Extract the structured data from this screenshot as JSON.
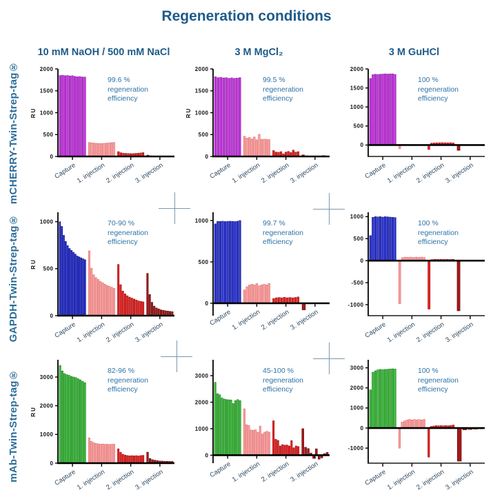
{
  "title": "Regeneration conditions",
  "columns": [
    "10 mM NaOH / 500 mM NaCl",
    "3 M MgCl₂",
    "3 M GuHCl"
  ],
  "rows": [
    "mCHERRY-Twin-Strep-tag®",
    "GAPDH-Twin-Strep-tag®",
    "mAb-Twin-Strep-tag®"
  ],
  "colors": {
    "title": "#1E5B88",
    "row_label": "#2C6D99",
    "annotation": "#2D73A6",
    "axis": "#000000",
    "cross": "#7E97AB",
    "capture_mcherry": "#C334DA",
    "capture_gapdh": "#2B35DC",
    "capture_mab": "#3DBE3D",
    "injection1": "#F7A2A2",
    "injection2": "#E52222",
    "injection3": "#A51818"
  },
  "chart_data": [
    {
      "name": "mCHERRY + 10 mM NaOH / 500 mM NaCl",
      "type": "bar",
      "ylabel": "RU",
      "ylim": [
        0,
        2000
      ],
      "yticks": [
        0,
        500,
        1000,
        1500,
        2000
      ],
      "bottom_axis": false,
      "annotation": "99.6 %\nregeneration\nefficiency",
      "groups": [
        {
          "label": "Capture",
          "fill": "#C334DA",
          "edge": "#8A1BA8",
          "values": [
            1850,
            1855,
            1845,
            1850,
            1840,
            1845,
            1830,
            1820,
            1825,
            1815,
            1815
          ]
        },
        {
          "label": "1. injection",
          "fill": "#F7A2A2",
          "edge": "#E06A6A",
          "values": [
            320,
            310,
            305,
            300,
            298,
            295,
            300,
            305,
            310,
            315,
            320
          ]
        },
        {
          "label": "2. injection",
          "fill": "#E52222",
          "edge": "#9E1212",
          "values": [
            110,
            85,
            75,
            70,
            68,
            65,
            65,
            70,
            75,
            80,
            88
          ]
        },
        {
          "label": "3. injection",
          "fill": "#A51818",
          "edge": "#5E0C0C",
          "values": [
            30,
            15,
            10,
            8,
            6,
            5,
            5,
            4,
            4,
            4
          ]
        }
      ]
    },
    {
      "name": "mCHERRY + 3 M MgCl₂",
      "type": "bar",
      "ylabel": "RU",
      "ylim": [
        0,
        2000
      ],
      "yticks": [
        0,
        500,
        1000,
        1500,
        2000
      ],
      "bottom_axis": false,
      "annotation": "99.5 %\nregeneration\nefficiency",
      "groups": [
        {
          "label": "Capture",
          "fill": "#C334DA",
          "edge": "#8A1BA8",
          "values": [
            1820,
            1800,
            1805,
            1795,
            1800,
            1785,
            1795,
            1785,
            1790,
            1800
          ]
        },
        {
          "label": "1. injection",
          "fill": "#F7A2A2",
          "edge": "#E06A6A",
          "values": [
            460,
            420,
            435,
            400,
            445,
            380,
            505,
            390,
            395,
            390,
            385
          ]
        },
        {
          "label": "2. injection",
          "fill": "#E52222",
          "edge": "#9E1212",
          "values": [
            135,
            100,
            95,
            110,
            60,
            100,
            115,
            90,
            145,
            100,
            110
          ]
        },
        {
          "label": "3. injection",
          "fill": "#A51818",
          "edge": "#5E0C0C",
          "values": [
            35,
            15,
            10,
            8,
            6,
            5,
            20,
            6
          ]
        }
      ]
    },
    {
      "name": "mCHERRY + 3 M GuHCl",
      "type": "bar",
      "ylabel": "",
      "ylim": [
        -300,
        2000
      ],
      "yticks": [
        0,
        500,
        1000,
        1500,
        2000
      ],
      "bottom_axis": true,
      "annotation": "100 %\nregeneration\nefficiency",
      "groups": [
        {
          "label": "Capture",
          "fill": "#C334DA",
          "edge": "#8A1BA8",
          "values": [
            1750,
            1850,
            1860,
            1855,
            1860,
            1865,
            1870,
            1865,
            1870,
            1870,
            1855
          ]
        },
        {
          "label": "1. injection",
          "fill": "#F7A2A2",
          "edge": "#E06A6A",
          "values": [
            -95,
            18,
            15,
            14,
            12,
            12,
            10,
            10,
            10,
            10
          ]
        },
        {
          "label": "2. injection",
          "fill": "#E52222",
          "edge": "#9E1212",
          "values": [
            -115,
            50,
            55,
            58,
            60,
            62,
            60,
            58,
            60,
            55
          ]
        },
        {
          "label": "3. injection",
          "fill": "#A51818",
          "edge": "#5E0C0C",
          "values": [
            -140,
            8,
            5,
            4,
            3,
            3,
            3
          ]
        }
      ]
    },
    {
      "name": "GAPDH + 10 mM NaOH / 500 mM NaCl",
      "type": "bar",
      "ylabel": "RU",
      "ylim": [
        0,
        1100
      ],
      "yticks": [
        0,
        500,
        1000
      ],
      "bottom_axis": false,
      "annotation": "70-90 %\nregeneration\nefficiency",
      "groups": [
        {
          "label": "Capture",
          "fill": "#2B35DC",
          "edge": "#10147F",
          "values": [
            1000,
            950,
            855,
            790,
            745,
            715,
            695,
            675,
            655,
            635,
            625,
            615,
            605,
            595
          ]
        },
        {
          "label": "1. injection",
          "fill": "#F7A2A2",
          "edge": "#E06A6A",
          "values": [
            690,
            505,
            435,
            405,
            385,
            365,
            350,
            335,
            322,
            312,
            302,
            292
          ]
        },
        {
          "label": "2. injection",
          "fill": "#E52222",
          "edge": "#9E1212",
          "values": [
            545,
            330,
            262,
            232,
            212,
            197,
            187,
            177,
            167,
            157,
            152,
            147
          ]
        },
        {
          "label": "3. injection",
          "fill": "#A51818",
          "edge": "#5E0C0C",
          "values": [
            450,
            225,
            142,
            102,
            82,
            72,
            62,
            57,
            52,
            49,
            46,
            43
          ]
        }
      ]
    },
    {
      "name": "GAPDH + 3 M MgCl₂",
      "type": "bar",
      "ylabel": "",
      "ylim": [
        -150,
        1100
      ],
      "yticks": [
        0,
        500,
        1000
      ],
      "bottom_axis": false,
      "annotation": "99.7 %\nregeneration\nefficiency",
      "groups": [
        {
          "label": "Capture",
          "fill": "#2B35DC",
          "edge": "#10147F",
          "values": [
            960,
            990,
            990,
            992,
            988,
            990,
            992,
            990,
            988,
            992,
            1000
          ]
        },
        {
          "label": "1. injection",
          "fill": "#F7A2A2",
          "edge": "#E06A6A",
          "values": [
            160,
            200,
            220,
            230,
            222,
            238,
            212,
            222,
            230,
            222,
            240
          ]
        },
        {
          "label": "2. injection",
          "fill": "#E52222",
          "edge": "#9E1212",
          "values": [
            58,
            66,
            70,
            66,
            72,
            66,
            70,
            66,
            70,
            76
          ]
        },
        {
          "label": "3. injection",
          "fill": "#A51818",
          "edge": "#5E0C0C",
          "values": [
            -80,
            5,
            3,
            2,
            2,
            2
          ]
        }
      ]
    },
    {
      "name": "GAPDH + 3 M GuHCl",
      "type": "bar",
      "ylabel": "",
      "ylim": [
        -1250,
        1100
      ],
      "yticks": [
        -1000,
        -500,
        0,
        500,
        1000
      ],
      "bottom_axis": true,
      "annotation": "100 %\nregeneration\nefficiency",
      "groups": [
        {
          "label": "Capture",
          "fill": "#2B35DC",
          "edge": "#10147F",
          "values": [
            570,
            985,
            1000,
            995,
            1000,
            990,
            1000,
            995,
            990,
            985,
            980
          ]
        },
        {
          "label": "1. injection",
          "fill": "#F7A2A2",
          "edge": "#E06A6A",
          "values": [
            -980,
            70,
            80,
            76,
            80,
            72,
            80,
            76,
            80,
            72
          ]
        },
        {
          "label": "2. injection",
          "fill": "#E52222",
          "edge": "#9E1212",
          "values": [
            -1100,
            25,
            30,
            28,
            30,
            28,
            30,
            28,
            30
          ]
        },
        {
          "label": "3. injection",
          "fill": "#A51818",
          "edge": "#5E0C0C",
          "values": [
            -1140,
            10,
            8,
            6,
            5,
            4,
            4
          ]
        }
      ]
    },
    {
      "name": "mAb + 10 mM NaOH / 500 mM NaCl",
      "type": "bar",
      "ylabel": "RU",
      "ylim": [
        0,
        3600
      ],
      "yticks": [
        0,
        1000,
        2000,
        3000
      ],
      "bottom_axis": false,
      "annotation": "82-96 %\nregeneration\nefficiency",
      "groups": [
        {
          "label": "Capture",
          "fill": "#3DBE3D",
          "edge": "#1B7A1B",
          "values": [
            3400,
            3210,
            3120,
            3080,
            3060,
            3020,
            3000,
            2980,
            2940,
            2900,
            2850,
            2800
          ]
        },
        {
          "label": "1. injection",
          "fill": "#F7A2A2",
          "edge": "#E06A6A",
          "values": [
            880,
            760,
            715,
            690,
            672,
            662,
            668,
            656,
            662,
            652,
            658,
            662
          ]
        },
        {
          "label": "2. injection",
          "fill": "#E52222",
          "edge": "#9E1212",
          "values": [
            500,
            382,
            312,
            282,
            266,
            256,
            262,
            256,
            262,
            252,
            266,
            272
          ]
        },
        {
          "label": "3. injection",
          "fill": "#A51818",
          "edge": "#5E0C0C",
          "values": [
            382,
            162,
            122,
            102,
            86,
            76,
            72,
            66,
            66,
            62,
            60
          ]
        }
      ]
    },
    {
      "name": "mAb + 3 M MgCl₂",
      "type": "bar",
      "ylabel": "",
      "ylim": [
        -300,
        3600
      ],
      "yticks": [
        0,
        1000,
        2000,
        3000
      ],
      "bottom_axis": false,
      "annotation": "45-100 %\nregeneration\nefficiency",
      "groups": [
        {
          "label": "Capture",
          "fill": "#3DBE3D",
          "edge": "#1B7A1B",
          "values": [
            2750,
            2320,
            2280,
            2160,
            2120,
            2100,
            2090,
            2085,
            1950,
            2060,
            2100,
            2060
          ]
        },
        {
          "label": "1. injection",
          "fill": "#F7A2A2",
          "edge": "#E06A6A",
          "values": [
            1750,
            1150,
            1120,
            950,
            940,
            960,
            870,
            1100,
            800,
            870,
            905,
            870
          ]
        },
        {
          "label": "2. injection",
          "fill": "#E52222",
          "edge": "#9E1212",
          "values": [
            1300,
            600,
            560,
            350,
            400,
            380,
            385,
            350,
            550,
            280,
            350,
            330
          ]
        },
        {
          "label": "3. injection",
          "fill": "#A51818",
          "edge": "#5E0C0C",
          "values": [
            1000,
            300,
            250,
            80,
            -120,
            240,
            -150,
            -100,
            60,
            105
          ]
        }
      ]
    },
    {
      "name": "mAb + 3 M GuHCl",
      "type": "bar",
      "ylabel": "",
      "ylim": [
        -1750,
        3400
      ],
      "yticks": [
        -1000,
        0,
        1000,
        2000,
        3000
      ],
      "bottom_axis": true,
      "annotation": "100 %\nregeneration\nefficiency",
      "groups": [
        {
          "label": "Capture",
          "fill": "#3DBE3D",
          "edge": "#1B7A1B",
          "values": [
            1900,
            2780,
            2850,
            2900,
            2920,
            2905,
            2920,
            2930,
            2940,
            2950,
            2940
          ]
        },
        {
          "label": "1. injection",
          "fill": "#F7A2A2",
          "edge": "#E06A6A",
          "values": [
            -1000,
            300,
            350,
            400,
            430,
            405,
            425,
            405,
            425,
            405,
            430
          ]
        },
        {
          "label": "2. injection",
          "fill": "#E52222",
          "edge": "#9E1212",
          "values": [
            -1450,
            80,
            100,
            120,
            112,
            120,
            112,
            122,
            112,
            130,
            150
          ]
        },
        {
          "label": "3. injection",
          "fill": "#A51818",
          "edge": "#5E0C0C",
          "values": [
            -1650,
            -90,
            -70,
            -55,
            -40
          ]
        }
      ]
    }
  ]
}
